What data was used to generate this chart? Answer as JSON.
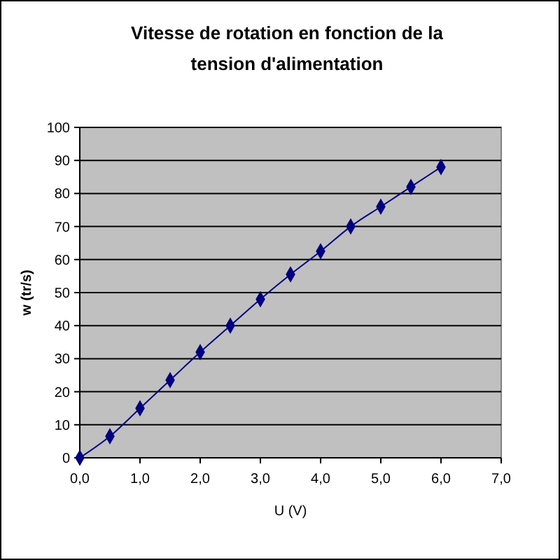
{
  "chart_data": {
    "type": "line",
    "title": "Vitesse de rotation en fonction de la tension d'alimentation",
    "xlabel": "U (V)",
    "ylabel": "w (tr/s)",
    "x": [
      0,
      0.5,
      1,
      1.5,
      2,
      2.5,
      3,
      3.5,
      4,
      4.5,
      5,
      5.5,
      6
    ],
    "series": [
      {
        "color": "#000080",
        "values": [
          0,
          6.5,
          15,
          23.5,
          32,
          40,
          48,
          55.5,
          62.5,
          70,
          76,
          82,
          88
        ]
      }
    ],
    "xlim": [
      0,
      7
    ],
    "xticks": [
      {
        "value": 0,
        "label": "0,0"
      },
      {
        "value": 1,
        "label": "1,0"
      },
      {
        "value": 2,
        "label": "2,0"
      },
      {
        "value": 3,
        "label": "3,0"
      },
      {
        "value": 4,
        "label": "4,0"
      },
      {
        "value": 5,
        "label": "5,0"
      },
      {
        "value": 6,
        "label": "6,0"
      },
      {
        "value": 7,
        "label": "7,0"
      }
    ],
    "ylim": [
      0,
      100
    ],
    "yticks": [
      0,
      10,
      20,
      30,
      40,
      50,
      60,
      70,
      80,
      90,
      100
    ],
    "grid": "y",
    "marker": "diamond",
    "line_style": "solid"
  }
}
